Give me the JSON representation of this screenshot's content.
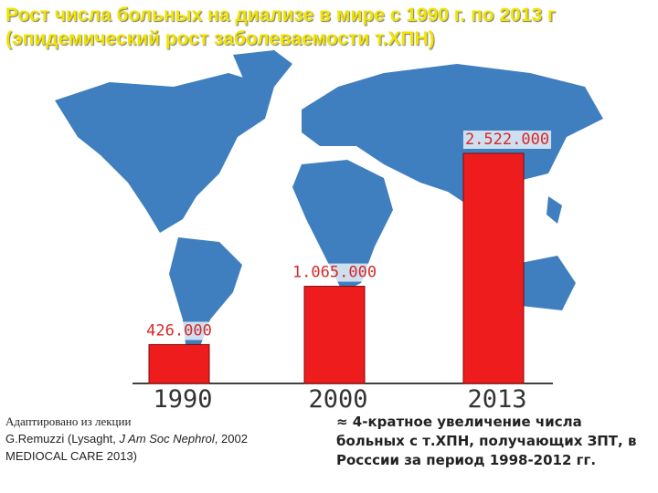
{
  "title": [
    "Рост числа больных на диализе в мире с 1990 г. по 2013 г",
    "(эпидемический рост заболеваемости т.ХПН)"
  ],
  "chart_data": {
    "type": "bar",
    "categories": [
      "1990",
      "2000",
      "2013"
    ],
    "values": [
      426000,
      1065000,
      2522000
    ],
    "value_labels": [
      "426.000",
      "1.065.000",
      "2.522.000"
    ],
    "color": "#ee1c1c"
  },
  "source": [
    "Адаптировано из лекции",
    "G.Remuzzi (Lysaght, ",
    "J Am Soc Nephrol",
    ", 2002",
    "MEDIOCAL CARE 2013)"
  ],
  "note": [
    "≈ 4-кратное увеличение числа",
    "больных с т.ХПН, получающих ЗПТ, в",
    "Росссии за период 1998-2012 гг."
  ]
}
